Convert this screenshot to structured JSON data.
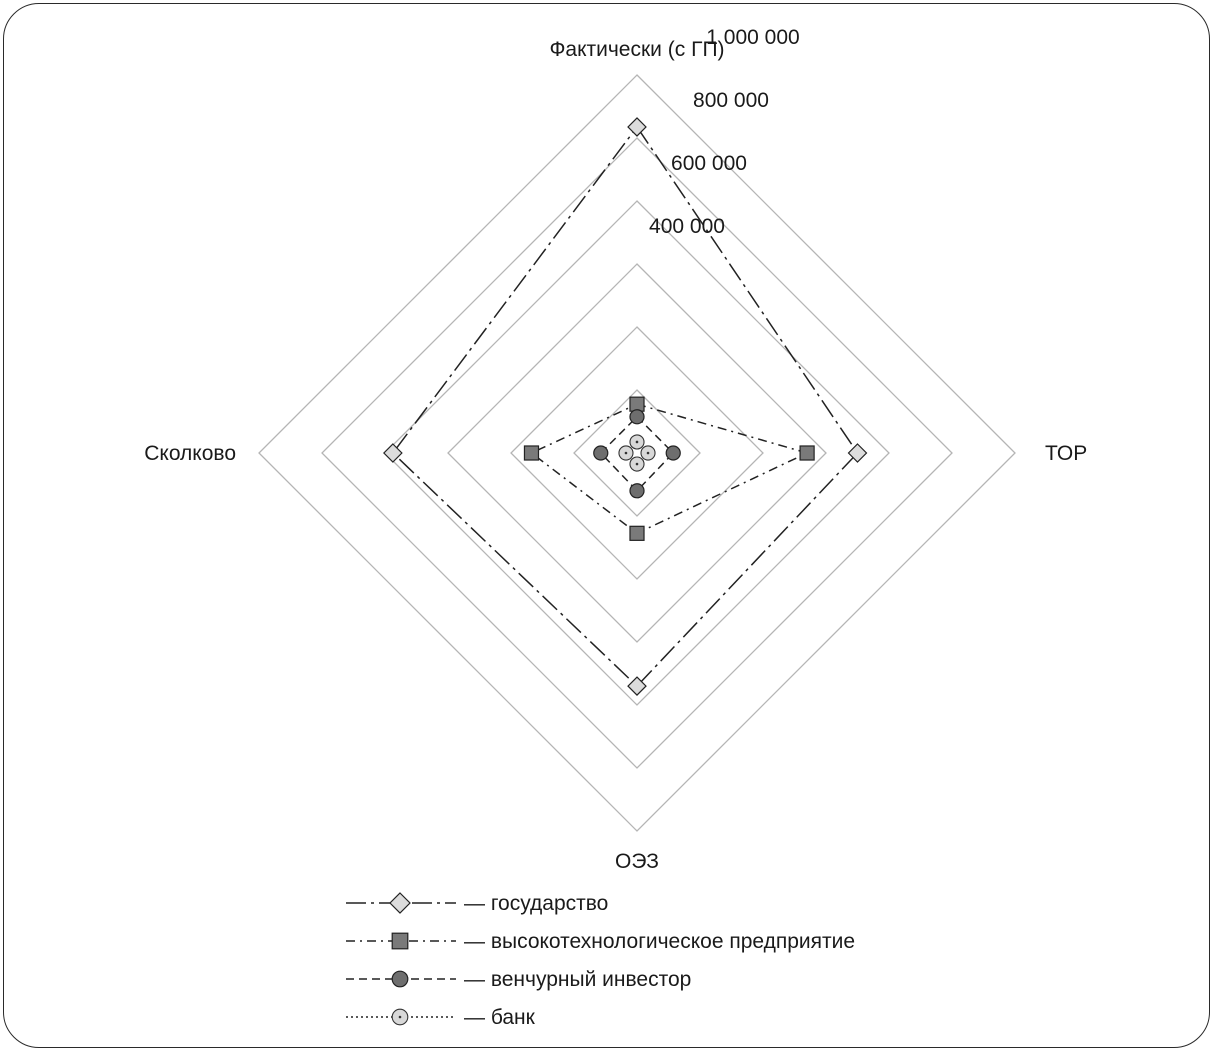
{
  "chart_data": {
    "type": "radar",
    "title": "",
    "axes": [
      "Фактически (с ГП)",
      "ТОР",
      "ОЭЗ",
      "Сколково"
    ],
    "rlim": [
      0,
      1200000
    ],
    "rings": [
      200000,
      400000,
      600000,
      800000,
      1000000,
      1200000
    ],
    "tick_labels": [
      {
        "value": 400000,
        "label": "400 000"
      },
      {
        "value": 600000,
        "label": "600 000"
      },
      {
        "value": 800000,
        "label": "800 000"
      },
      {
        "value": 1000000,
        "label": "1 000 000"
      }
    ],
    "grid": true,
    "legend_position": "bottom",
    "series": [
      {
        "name": "государство",
        "marker": "diamond",
        "line": "long-dash-dot",
        "fill": "#dcdcdc",
        "values": [
          1035000,
          700000,
          740000,
          775000
        ]
      },
      {
        "name": "высокотехнологическое предприятие",
        "marker": "square",
        "line": "dash-dot",
        "fill": "#7a7a7a",
        "values": [
          155000,
          540000,
          255000,
          335000
        ]
      },
      {
        "name": "венчурный инвестор",
        "marker": "circle",
        "line": "dash",
        "fill": "#6e6e6e",
        "values": [
          115000,
          115000,
          120000,
          115000
        ]
      },
      {
        "name": "банк",
        "marker": "dotted-circle",
        "line": "dot",
        "fill": "#d8d8d8",
        "values": [
          35000,
          35000,
          35000,
          35000
        ]
      }
    ]
  },
  "legend": {
    "prefix": "—",
    "items": [
      "государство",
      "высокотехнологическое предприятие",
      "венчурный инвестор",
      "банк"
    ]
  }
}
